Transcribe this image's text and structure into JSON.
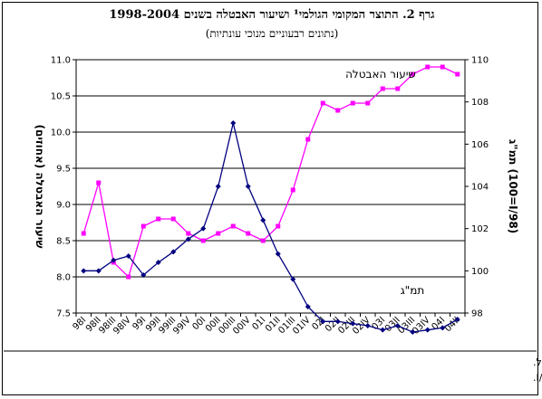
{
  "title": "גרף 2. התוצר המקומי הגולמי¹ ושיעור האבטלה בשנים 1998-2004",
  "subtitle": "(נתונים רבעוניים מנוכי עונתיות)",
  "source": "מקור: הלשכה המרכזית לסטטיסטיקה ועיבודי בנק ישראל.",
  "note": "(1)   הערה לגרף: מדד 100=I/1998.",
  "chart_data": {
    "type": "line",
    "x": [
      "I/98",
      "II/98",
      "III/98",
      "IV/98",
      "I/99",
      "II/99",
      "III/99",
      "IV/99",
      "I/00",
      "II/00",
      "III/00",
      "IV/00",
      "I/01",
      "II/01",
      "III/01",
      "IV/01",
      "I/02",
      "II/02",
      "III/02",
      "IV/02",
      "I/03",
      "II/03",
      "III/03",
      "IV/03",
      "I/04",
      "II/04"
    ],
    "xticklabels": [
      "98I",
      "98II",
      "98III",
      "98IV",
      "99I",
      "99II",
      "99III",
      "99IV",
      "00I",
      "00II",
      "00III",
      "00IV",
      "01I",
      "01II",
      "01III",
      "01IV",
      "02I",
      "02II",
      "02III",
      "02IV",
      "03I",
      "03II",
      "03III",
      "03IV",
      "04I",
      "04II"
    ],
    "y_left": {
      "label": "שיעור האבטלה (אחוזים)",
      "ylim": [
        7.5,
        11.0
      ],
      "ticks": [
        "7.5",
        "8.0",
        "8.5",
        "9.0",
        "9.5",
        "10.0",
        "10.5",
        "11.0"
      ]
    },
    "y_right": {
      "label": "תמ\"ג (100=I/98)",
      "ylim": [
        98,
        110
      ],
      "ticks": [
        "98",
        "100",
        "102",
        "104",
        "106",
        "108",
        "110"
      ]
    },
    "series": [
      {
        "name": "שיעור האבטלה",
        "axis": "left",
        "color": "#ff00ff",
        "marker": "square",
        "values": [
          8.6,
          9.3,
          8.2,
          8.0,
          8.7,
          8.8,
          8.8,
          8.6,
          8.5,
          8.6,
          8.7,
          8.6,
          8.5,
          8.7,
          9.2,
          9.9,
          10.4,
          10.3,
          10.4,
          10.4,
          10.6,
          10.6,
          10.8,
          10.9,
          10.9,
          10.8
        ]
      },
      {
        "name": "תמ\"ג",
        "axis": "right",
        "color": "#000080",
        "marker": "diamond",
        "values": [
          100.0,
          100.0,
          100.5,
          100.7,
          99.8,
          100.4,
          100.9,
          101.5,
          102.0,
          104.0,
          107.0,
          104.0,
          102.4,
          100.8,
          99.6,
          98.3,
          97.6,
          97.6,
          97.5,
          97.4,
          97.2,
          97.4,
          97.1,
          97.2,
          97.3,
          97.7
        ]
      }
    ],
    "series_labels": [
      "שיעור האבטלה",
      "תמ\"ג"
    ],
    "grid": true
  }
}
